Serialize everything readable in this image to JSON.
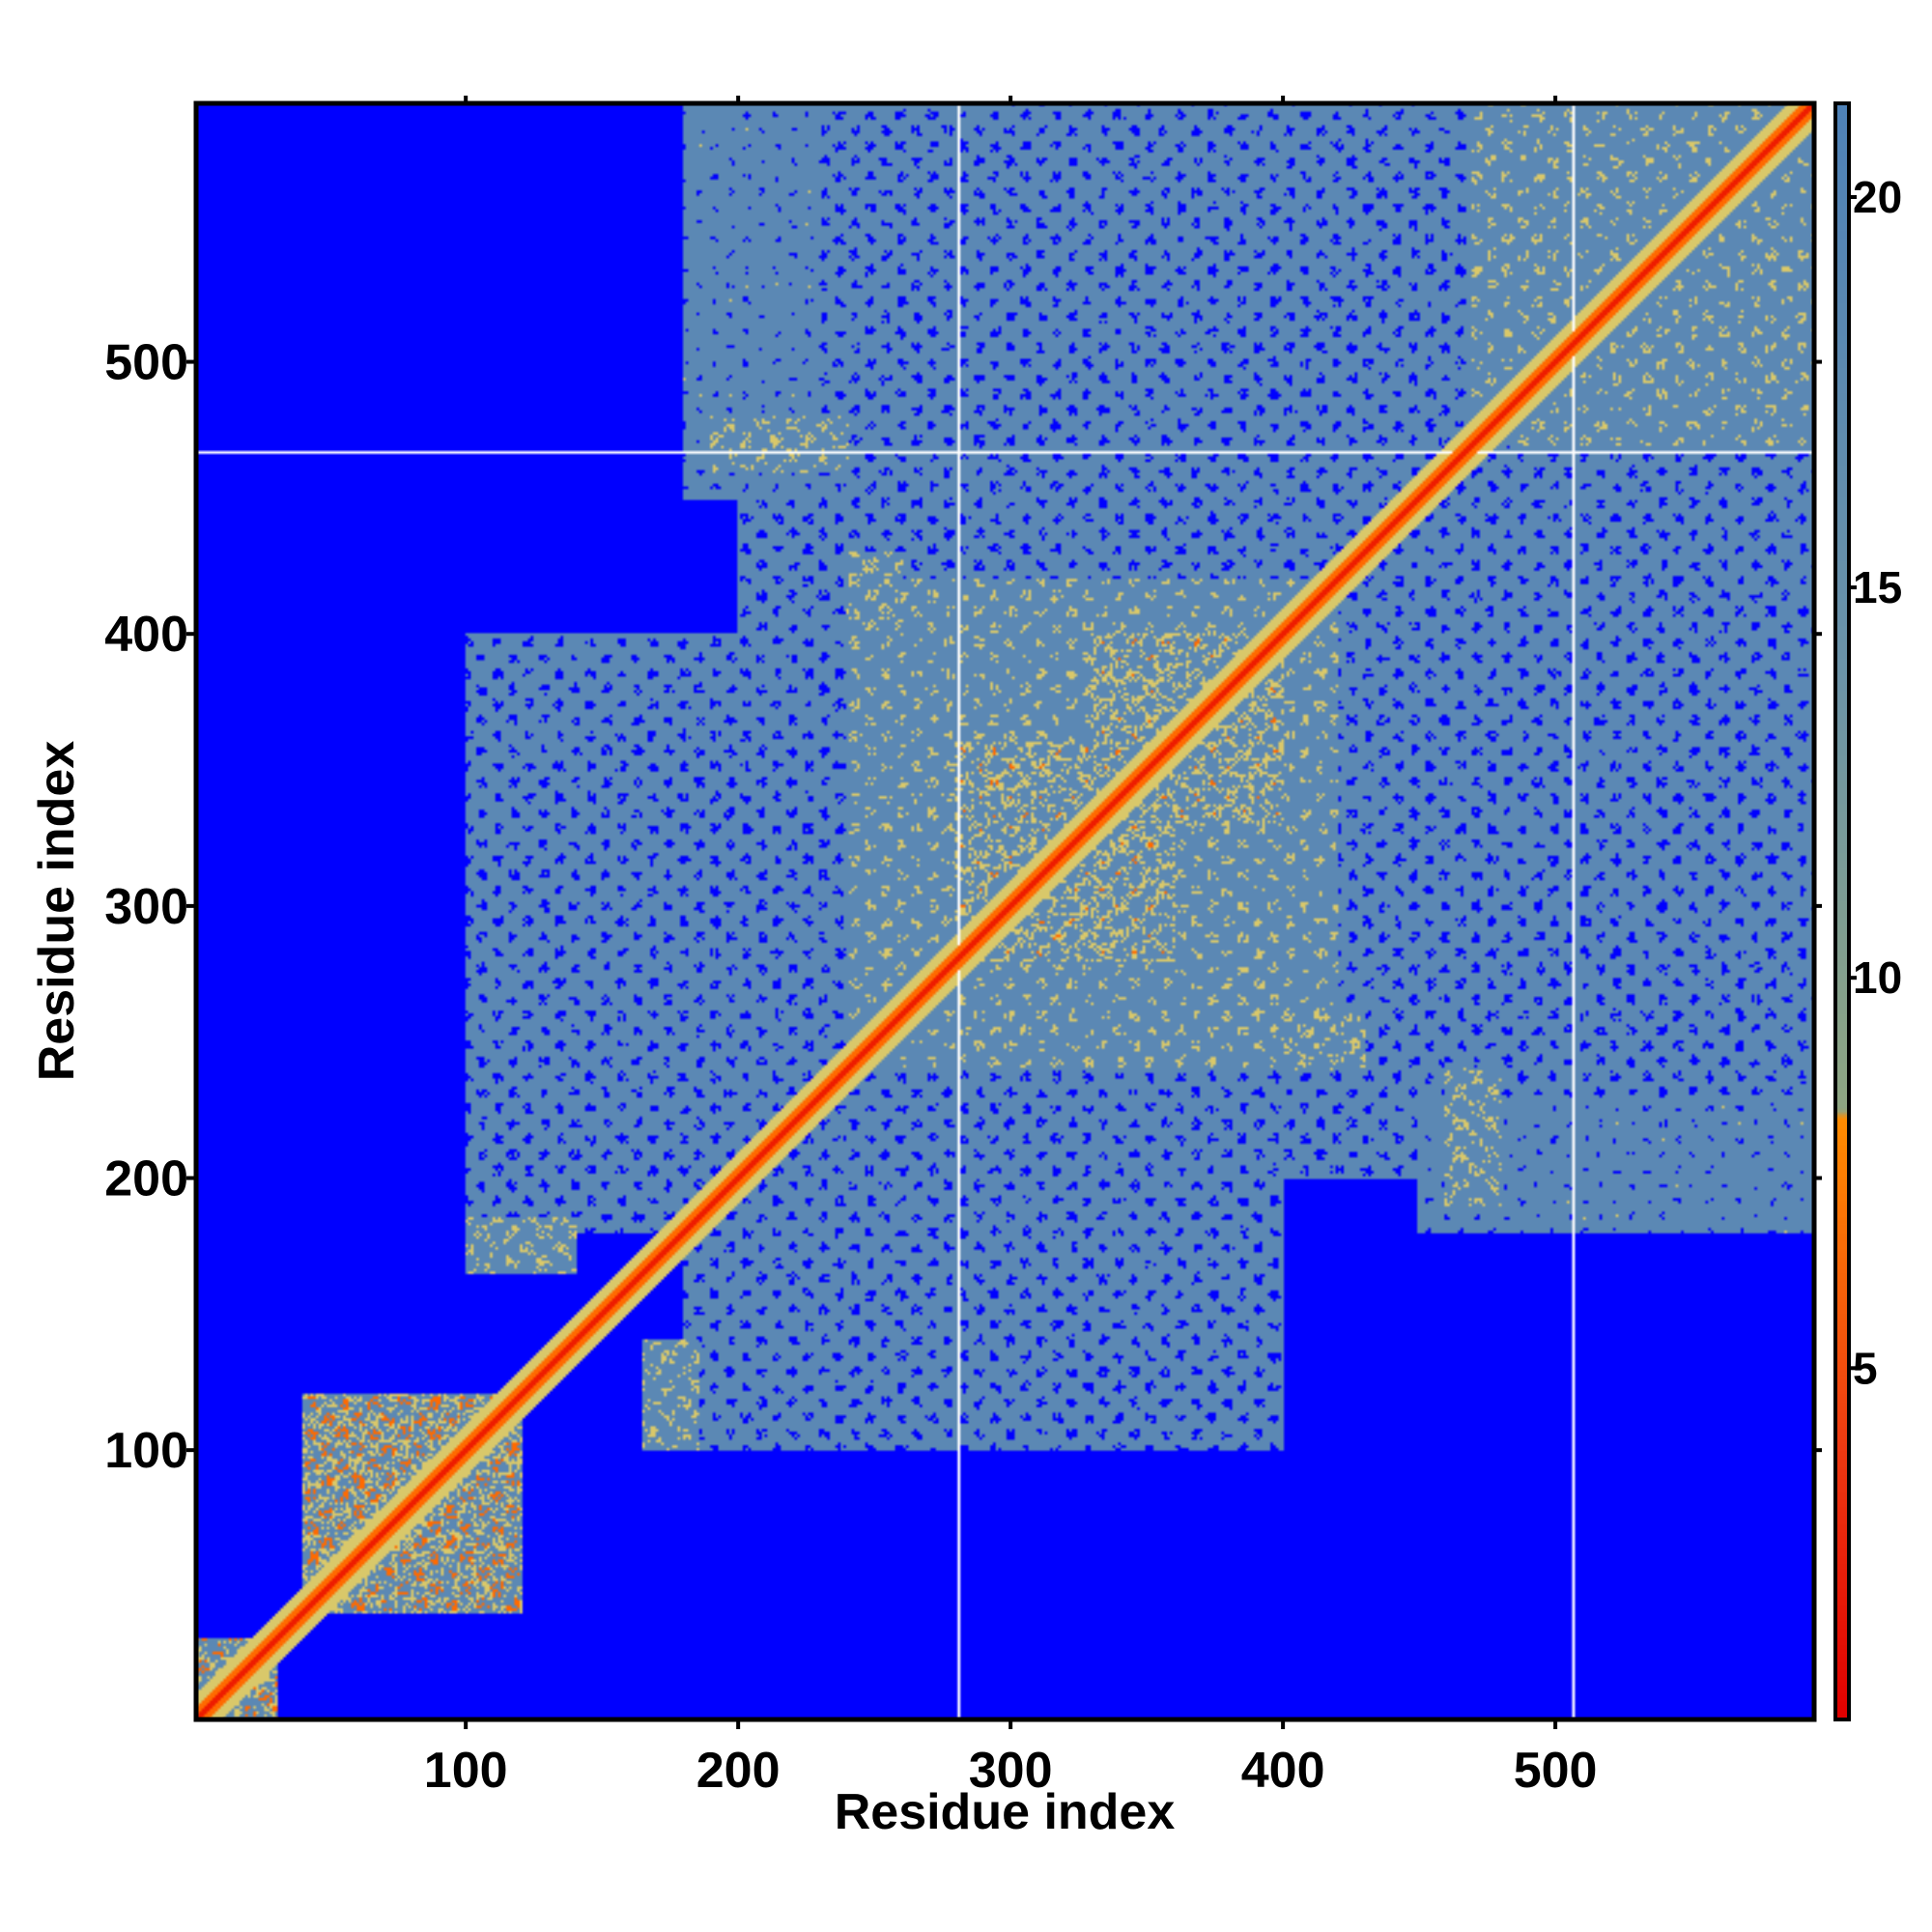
{
  "chart_data": {
    "type": "heatmap",
    "title": "",
    "xlabel": "Residue index",
    "ylabel": "Residue index",
    "xlim": [
      1,
      595
    ],
    "ylim": [
      1,
      595
    ],
    "x_ticks": [
      100,
      200,
      300,
      400,
      500
    ],
    "y_ticks": [
      100,
      200,
      300,
      400,
      500
    ],
    "x_tick_labels": [
      "100",
      "200",
      "300",
      "400",
      "500"
    ],
    "y_tick_labels": [
      "100",
      "200",
      "300",
      "400",
      "500"
    ],
    "colorbar": {
      "range": [
        0.5,
        21.2
      ],
      "ticks": [
        5,
        10,
        15,
        20
      ],
      "tick_labels": [
        "5",
        "10",
        "15",
        "20"
      ],
      "stops": [
        {
          "value": 0.5,
          "color": "#e00000"
        },
        {
          "value": 4.0,
          "color": "#ee3a12"
        },
        {
          "value": 8.2,
          "color": "#ff8c00"
        },
        {
          "value": 8.3,
          "color": "#8fa682"
        },
        {
          "value": 14.0,
          "color": "#6b93a8"
        },
        {
          "value": 21.2,
          "color": "#4f82b8"
        }
      ]
    },
    "colors": {
      "far": "#0000ff",
      "mid": "#5b88b4",
      "near": "#d9c86a",
      "contact": "#ff6a00",
      "diagonal": "#ee1c00",
      "gridline": "#ffffff"
    },
    "gap_lines": {
      "x": [
        281,
        507
      ],
      "y": [
        467
      ]
    },
    "contact_regions": [
      {
        "x": [
          1,
          30
        ],
        "y": [
          1,
          30
        ],
        "value": 9
      },
      {
        "x": [
          40,
          120
        ],
        "y": [
          40,
          120
        ],
        "value": 9
      },
      {
        "x": [
          100,
          140
        ],
        "y": [
          165,
          185
        ],
        "value": 12
      },
      {
        "x": [
          165,
          180
        ],
        "y": [
          100,
          130
        ],
        "value": 12
      },
      {
        "x": [
          100,
          220
        ],
        "y": [
          180,
          400
        ],
        "value": 16
      },
      {
        "x": [
          180,
          300
        ],
        "y": [
          100,
          240
        ],
        "value": 16
      },
      {
        "x": [
          200,
          595
        ],
        "y": [
          200,
          595
        ],
        "value": 16
      },
      {
        "x": [
          240,
          420
        ],
        "y": [
          240,
          420
        ],
        "value": 13
      },
      {
        "x": [
          280,
          340
        ],
        "y": [
          280,
          360
        ],
        "value": 11
      },
      {
        "x": [
          330,
          400
        ],
        "y": [
          330,
          400
        ],
        "value": 11
      },
      {
        "x": [
          470,
          595
        ],
        "y": [
          470,
          595
        ],
        "value": 13
      },
      {
        "x": [
          180,
          230
        ],
        "y": [
          450,
          595
        ],
        "value": 15
      },
      {
        "x": [
          460,
          480
        ],
        "y": [
          190,
          240
        ],
        "value": 12
      },
      {
        "x": [
          400,
          430
        ],
        "y": [
          240,
          260
        ],
        "value": 12
      }
    ]
  }
}
